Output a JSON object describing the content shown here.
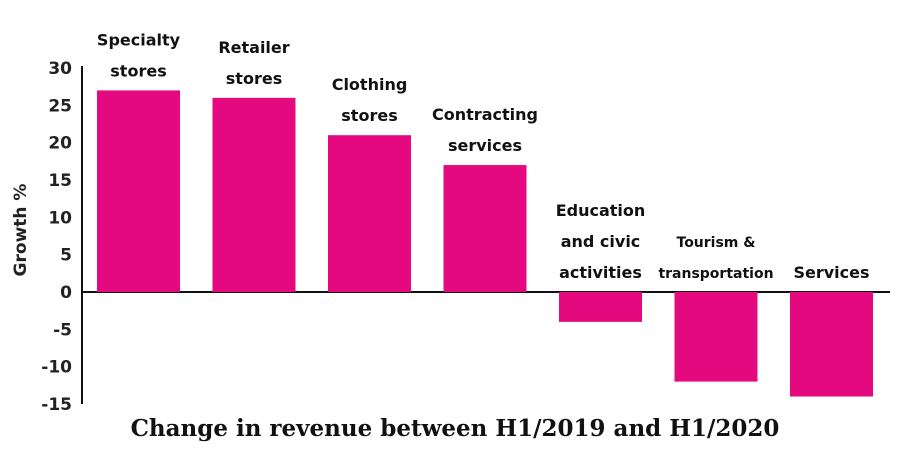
{
  "chart_data": {
    "type": "bar",
    "title": "",
    "xlabel": "Change in revenue between H1/2019 and H1/2020",
    "ylabel": "Growth %",
    "ylim": [
      -15,
      30
    ],
    "yticks": [
      30,
      25,
      20,
      15,
      10,
      5,
      0,
      -5,
      -10,
      -15
    ],
    "grid": false,
    "legend": "none",
    "bar_color": "#e5097f",
    "categories": [
      [
        "Specialty",
        "stores"
      ],
      [
        "Retailer",
        "stores"
      ],
      [
        "Clothing",
        "stores"
      ],
      [
        "Contracting",
        "services"
      ],
      [
        "Education",
        "and civic",
        "activities"
      ],
      [
        "Tourism &",
        "transportation"
      ],
      [
        "Services"
      ]
    ],
    "values": [
      27,
      26,
      21,
      17,
      -4,
      -12,
      -14
    ]
  }
}
